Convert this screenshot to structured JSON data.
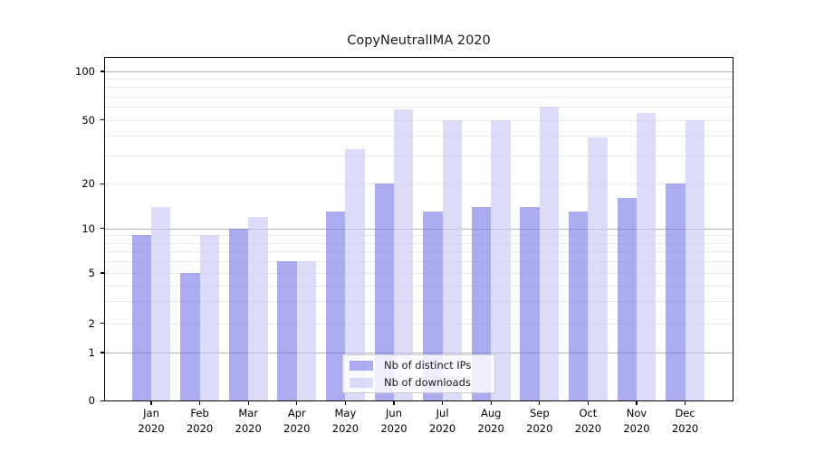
{
  "title": "CopyNeutralIMA 2020",
  "chart_data": {
    "type": "bar",
    "categories": [
      "Jan",
      "Feb",
      "Mar",
      "Apr",
      "May",
      "Jun",
      "Jul",
      "Aug",
      "Sep",
      "Oct",
      "Nov",
      "Dec"
    ],
    "category_year": "2020",
    "series": [
      {
        "name": "Nb of distinct IPs",
        "values": [
          9,
          5,
          10,
          6,
          13,
          20,
          13,
          14,
          14,
          13,
          16,
          20
        ],
        "color": "rgba(123,123,232,0.64)"
      },
      {
        "name": "Nb of downloads",
        "values": [
          14,
          9,
          12,
          6,
          33,
          58,
          50,
          50,
          60,
          39,
          55,
          50
        ],
        "color": "rgba(200,200,244,0.64)"
      }
    ],
    "yscale": "symlog",
    "ylim": [
      0,
      124
    ],
    "y_tick_labels": [
      "100",
      "50",
      "20",
      "10",
      "5",
      "2",
      "1",
      "0"
    ],
    "y_tick_values": [
      100,
      50,
      20,
      10,
      5,
      2,
      1,
      0
    ],
    "y_major_gridlines": [
      1,
      10,
      100
    ],
    "y_minor_gridlines": [
      2,
      3,
      4,
      5,
      6,
      7,
      8,
      9,
      20,
      30,
      40,
      50,
      60,
      70,
      80,
      90
    ],
    "grid": true,
    "legend_position": "lower center",
    "xlabel": "",
    "ylabel": ""
  },
  "colors": {
    "major_grid": "#b0b0b0",
    "minor_grid": "#e9e9e9",
    "frame": "#000000",
    "background": "#ffffff"
  }
}
